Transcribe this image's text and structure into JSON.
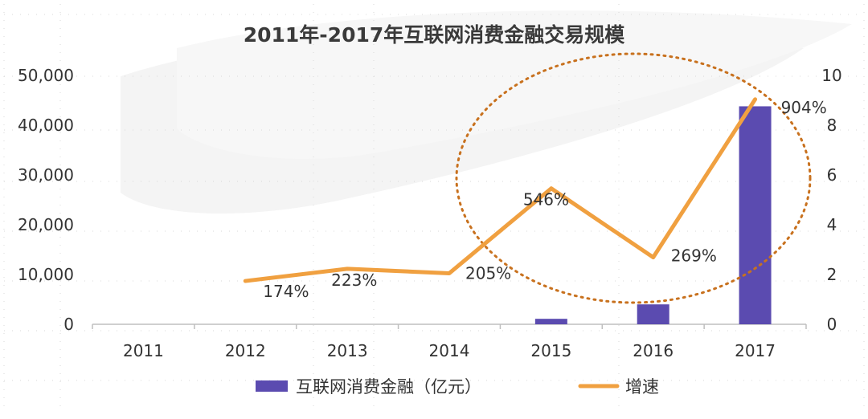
{
  "chart_data": {
    "type": "bar+line",
    "title": "2011年-2017年互联网消费金融交易规模",
    "categories": [
      "2011",
      "2012",
      "2013",
      "2014",
      "2015",
      "2016",
      "2017"
    ],
    "series": [
      {
        "name": "互联网消费金融（亿元）",
        "type": "bar",
        "axis": "left",
        "color": "#5b4bb0",
        "values": [
          0,
          0,
          0,
          0,
          1100,
          4000,
          43800
        ]
      },
      {
        "name": "增速",
        "type": "line",
        "axis": "right",
        "color": "#f0a040",
        "values": [
          null,
          1.74,
          2.23,
          2.05,
          5.46,
          2.69,
          9.04
        ],
        "labels": [
          "",
          "174%",
          "223%",
          "205%",
          "546%",
          "269%",
          "904%"
        ]
      }
    ],
    "left_axis": {
      "range": [
        0,
        50000
      ],
      "ticks": [
        "0",
        "10,000",
        "20,000",
        "30,000",
        "40,000",
        "50,000"
      ]
    },
    "right_axis": {
      "range": [
        0,
        10
      ],
      "ticks": [
        "0",
        "2",
        "4",
        "6",
        "8",
        "10"
      ]
    },
    "annotation": "dotted ellipse highlighting 2015-2017",
    "legend_position": "bottom"
  }
}
